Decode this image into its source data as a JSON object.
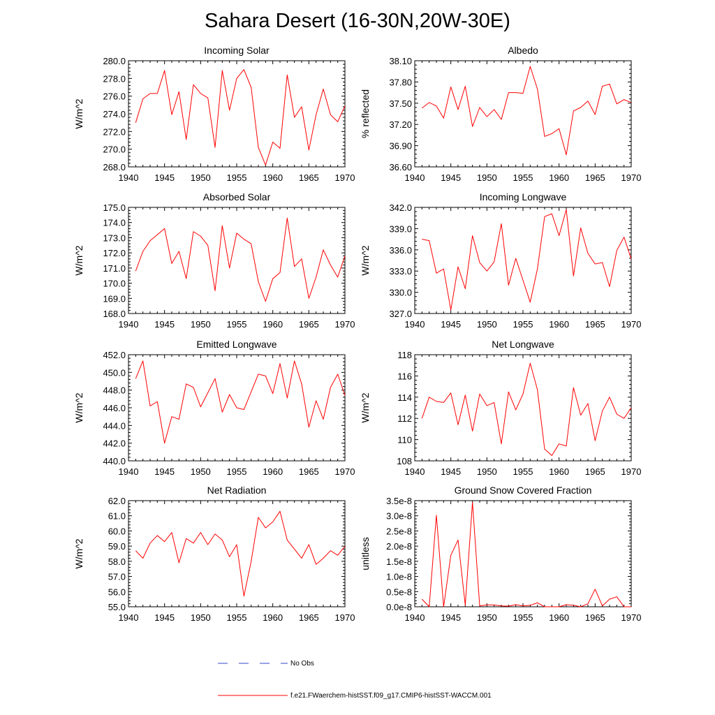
{
  "page": {
    "title": "Sahara Desert (16-30N,20W-30E)"
  },
  "legend": [
    {
      "label": "No Obs",
      "color": "#3344cc",
      "style": "dashed"
    },
    {
      "label": "f.e21.FWaerchem-histSST.f09_g17.CMIP6-histSST-WACCM.001",
      "color": "#ff0000",
      "style": "solid"
    }
  ],
  "chart_data": [
    {
      "type": "line",
      "title": "Incoming Solar",
      "ylabel": "W/m^2",
      "xlim": [
        1940,
        1970
      ],
      "ylim": [
        268,
        280
      ],
      "xticks": [
        1940,
        1945,
        1950,
        1955,
        1960,
        1965,
        1970
      ],
      "yticks": [
        268,
        270,
        272,
        274,
        276,
        278,
        280
      ],
      "ytick_labels": [
        "268.0",
        "270.0",
        "272.0",
        "274.0",
        "276.0",
        "278.0",
        "280.0"
      ],
      "x": [
        1941,
        1942,
        1943,
        1944,
        1945,
        1946,
        1947,
        1948,
        1949,
        1950,
        1951,
        1952,
        1953,
        1954,
        1955,
        1956,
        1957,
        1958,
        1959,
        1960,
        1961,
        1962,
        1963,
        1964,
        1965,
        1966,
        1967,
        1968,
        1969,
        1970
      ],
      "series": [
        {
          "name": "f.e21.FWaerchem-histSST.f09_g17.CMIP6-histSST-WACCM.001",
          "color": "#ff0000",
          "values": [
            273.0,
            275.7,
            276.3,
            276.3,
            278.9,
            273.9,
            276.5,
            271.1,
            277.3,
            276.3,
            275.8,
            270.2,
            278.9,
            274.4,
            278.0,
            279.0,
            277.0,
            270.2,
            268.2,
            270.8,
            270.1,
            278.4,
            273.6,
            274.8,
            269.9,
            273.9,
            276.8,
            273.9,
            273.1,
            274.9
          ]
        }
      ]
    },
    {
      "type": "line",
      "title": "Albedo",
      "ylabel": "% reflected",
      "xlim": [
        1940,
        1970
      ],
      "ylim": [
        36.6,
        38.1
      ],
      "xticks": [
        1940,
        1945,
        1950,
        1955,
        1960,
        1965,
        1970
      ],
      "yticks": [
        36.6,
        36.9,
        37.2,
        37.5,
        37.8,
        38.1
      ],
      "ytick_labels": [
        "36.60",
        "36.90",
        "37.20",
        "37.50",
        "37.80",
        "38.10"
      ],
      "x": [
        1941,
        1942,
        1943,
        1944,
        1945,
        1946,
        1947,
        1948,
        1949,
        1950,
        1951,
        1952,
        1953,
        1954,
        1955,
        1956,
        1957,
        1958,
        1959,
        1960,
        1961,
        1962,
        1963,
        1964,
        1965,
        1966,
        1967,
        1968,
        1969,
        1970
      ],
      "series": [
        {
          "name": "f.e21.FWaerchem-histSST.f09_g17.CMIP6-histSST-WACCM.001",
          "color": "#ff0000",
          "values": [
            37.43,
            37.51,
            37.46,
            37.29,
            37.73,
            37.41,
            37.74,
            37.17,
            37.44,
            37.31,
            37.41,
            37.27,
            37.65,
            37.65,
            37.64,
            38.02,
            37.7,
            37.03,
            37.07,
            37.14,
            36.77,
            37.39,
            37.44,
            37.53,
            37.34,
            37.74,
            37.77,
            37.49,
            37.55,
            37.51
          ]
        }
      ]
    },
    {
      "type": "line",
      "title": "Absorbed Solar",
      "ylabel": "W/m^2",
      "xlim": [
        1940,
        1970
      ],
      "ylim": [
        168,
        175
      ],
      "xticks": [
        1940,
        1945,
        1950,
        1955,
        1960,
        1965,
        1970
      ],
      "yticks": [
        168,
        169,
        170,
        171,
        172,
        173,
        174,
        175
      ],
      "ytick_labels": [
        "168.0",
        "169.0",
        "170.0",
        "171.0",
        "172.0",
        "173.0",
        "174.0",
        "175.0"
      ],
      "x": [
        1941,
        1942,
        1943,
        1944,
        1945,
        1946,
        1947,
        1948,
        1949,
        1950,
        1951,
        1952,
        1953,
        1954,
        1955,
        1956,
        1957,
        1958,
        1959,
        1960,
        1961,
        1962,
        1963,
        1964,
        1965,
        1966,
        1967,
        1968,
        1969,
        1970
      ],
      "series": [
        {
          "name": "f.e21.FWaerchem-histSST.f09_g17.CMIP6-histSST-WACCM.001",
          "color": "#ff0000",
          "values": [
            170.8,
            172.1,
            172.8,
            173.2,
            173.6,
            171.3,
            172.1,
            170.3,
            173.4,
            173.1,
            172.5,
            169.5,
            173.8,
            171.0,
            173.3,
            172.9,
            172.6,
            170.1,
            168.8,
            170.3,
            170.7,
            174.3,
            171.1,
            171.6,
            169.0,
            170.4,
            172.2,
            171.2,
            170.4,
            171.8
          ]
        }
      ]
    },
    {
      "type": "line",
      "title": "Incoming Longwave",
      "ylabel": "W/m^2",
      "xlim": [
        1940,
        1970
      ],
      "ylim": [
        327,
        342
      ],
      "xticks": [
        1940,
        1945,
        1950,
        1955,
        1960,
        1965,
        1970
      ],
      "yticks": [
        327,
        330,
        333,
        336,
        339,
        342
      ],
      "ytick_labels": [
        "327.0",
        "330.0",
        "333.0",
        "336.0",
        "339.0",
        "342.0"
      ],
      "x": [
        1941,
        1942,
        1943,
        1944,
        1945,
        1946,
        1947,
        1948,
        1949,
        1950,
        1951,
        1952,
        1953,
        1954,
        1955,
        1956,
        1957,
        1958,
        1959,
        1960,
        1961,
        1962,
        1963,
        1964,
        1965,
        1966,
        1967,
        1968,
        1969,
        1970
      ],
      "series": [
        {
          "name": "f.e21.FWaerchem-histSST.f09_g17.CMIP6-histSST-WACCM.001",
          "color": "#ff0000",
          "values": [
            337.5,
            337.3,
            332.7,
            333.3,
            327.5,
            333.6,
            330.5,
            338.0,
            334.2,
            333.0,
            334.3,
            339.7,
            331.0,
            334.8,
            331.7,
            328.6,
            333.3,
            340.7,
            341.1,
            338.0,
            341.7,
            332.3,
            339.1,
            335.5,
            334.0,
            334.2,
            330.8,
            335.9,
            337.8,
            334.7
          ]
        }
      ]
    },
    {
      "type": "line",
      "title": "Emitted Longwave",
      "ylabel": "W/m^2",
      "xlim": [
        1940,
        1970
      ],
      "ylim": [
        440,
        452
      ],
      "xticks": [
        1940,
        1945,
        1950,
        1955,
        1960,
        1965,
        1970
      ],
      "yticks": [
        440,
        442,
        444,
        446,
        448,
        450,
        452
      ],
      "ytick_labels": [
        "440.0",
        "442.0",
        "444.0",
        "446.0",
        "448.0",
        "450.0",
        "452.0"
      ],
      "x": [
        1941,
        1942,
        1943,
        1944,
        1945,
        1946,
        1947,
        1948,
        1949,
        1950,
        1951,
        1952,
        1953,
        1954,
        1955,
        1956,
        1957,
        1958,
        1959,
        1960,
        1961,
        1962,
        1963,
        1964,
        1965,
        1966,
        1967,
        1968,
        1969,
        1970
      ],
      "series": [
        {
          "name": "f.e21.FWaerchem-histSST.f09_g17.CMIP6-histSST-WACCM.001",
          "color": "#ff0000",
          "values": [
            449.3,
            451.3,
            446.2,
            446.7,
            442.0,
            445.0,
            444.7,
            448.7,
            448.3,
            446.1,
            447.7,
            449.3,
            445.5,
            447.5,
            446.0,
            445.8,
            447.8,
            449.8,
            449.6,
            447.6,
            451.0,
            447.1,
            451.3,
            448.7,
            443.8,
            446.8,
            444.7,
            448.3,
            449.8,
            447.4
          ]
        }
      ]
    },
    {
      "type": "line",
      "title": "Net Longwave",
      "ylabel": "W/m^2",
      "xlim": [
        1940,
        1970
      ],
      "ylim": [
        108,
        118
      ],
      "xticks": [
        1940,
        1945,
        1950,
        1955,
        1960,
        1965,
        1970
      ],
      "yticks": [
        108,
        110,
        112,
        114,
        116,
        118
      ],
      "ytick_labels": [
        "108",
        "110",
        "112",
        "114",
        "116",
        "118"
      ],
      "x": [
        1941,
        1942,
        1943,
        1944,
        1945,
        1946,
        1947,
        1948,
        1949,
        1950,
        1951,
        1952,
        1953,
        1954,
        1955,
        1956,
        1957,
        1958,
        1959,
        1960,
        1961,
        1962,
        1963,
        1964,
        1965,
        1966,
        1967,
        1968,
        1969,
        1970
      ],
      "series": [
        {
          "name": "f.e21.FWaerchem-histSST.f09_g17.CMIP6-histSST-WACCM.001",
          "color": "#ff0000",
          "values": [
            112.0,
            114.0,
            113.6,
            113.5,
            114.4,
            111.4,
            114.2,
            110.8,
            114.3,
            113.2,
            113.5,
            109.6,
            114.5,
            112.8,
            114.3,
            117.2,
            114.7,
            109.1,
            108.5,
            109.6,
            109.4,
            114.9,
            112.3,
            113.4,
            109.9,
            112.7,
            114.0,
            112.4,
            112.0,
            113.0
          ]
        }
      ]
    },
    {
      "type": "line",
      "title": "Net Radiation",
      "ylabel": "W/m^2",
      "xlim": [
        1940,
        1970
      ],
      "ylim": [
        55,
        62
      ],
      "xticks": [
        1940,
        1945,
        1950,
        1955,
        1960,
        1965,
        1970
      ],
      "yticks": [
        55,
        56,
        57,
        58,
        59,
        60,
        61,
        62
      ],
      "ytick_labels": [
        "55.0",
        "56.0",
        "57.0",
        "58.0",
        "59.0",
        "60.0",
        "61.0",
        "62.0"
      ],
      "x": [
        1941,
        1942,
        1943,
        1944,
        1945,
        1946,
        1947,
        1948,
        1949,
        1950,
        1951,
        1952,
        1953,
        1954,
        1955,
        1956,
        1957,
        1958,
        1959,
        1960,
        1961,
        1962,
        1963,
        1964,
        1965,
        1966,
        1967,
        1968,
        1969,
        1970
      ],
      "series": [
        {
          "name": "f.e21.FWaerchem-histSST.f09_g17.CMIP6-histSST-WACCM.001",
          "color": "#ff0000",
          "values": [
            58.7,
            58.2,
            59.2,
            59.7,
            59.3,
            59.9,
            57.9,
            59.5,
            59.2,
            59.9,
            59.1,
            59.8,
            59.4,
            58.3,
            59.1,
            55.7,
            58.0,
            60.9,
            60.2,
            60.6,
            61.3,
            59.4,
            58.8,
            58.2,
            59.1,
            57.8,
            58.2,
            58.7,
            58.4,
            59.0
          ]
        }
      ]
    },
    {
      "type": "line",
      "title": "Ground Snow Covered Fraction",
      "ylabel": "unitless",
      "xlim": [
        1940,
        1970
      ],
      "ylim": [
        0,
        3.5e-08
      ],
      "xticks": [
        1940,
        1945,
        1950,
        1955,
        1960,
        1965,
        1970
      ],
      "yticks": [
        0,
        5e-09,
        1e-08,
        1.5e-08,
        2e-08,
        2.5e-08,
        3e-08,
        3.5e-08
      ],
      "ytick_labels": [
        "0.0e-8",
        "0.5e-8",
        "1.0e-8",
        "1.5e-8",
        "2.0e-8",
        "2.5e-8",
        "3.0e-8",
        "3.5e-8"
      ],
      "x": [
        1941,
        1942,
        1943,
        1944,
        1945,
        1946,
        1947,
        1948,
        1949,
        1950,
        1951,
        1952,
        1953,
        1954,
        1955,
        1956,
        1957,
        1958,
        1959,
        1960,
        1961,
        1962,
        1963,
        1964,
        1965,
        1966,
        1967,
        1968,
        1969,
        1970
      ],
      "series": [
        {
          "name": "f.e21.FWaerchem-histSST.f09_g17.CMIP6-histSST-WACCM.001",
          "color": "#ff0000",
          "values": [
            2.5e-09,
            0.0,
            3.02e-08,
            0.0,
            1.7e-08,
            2.2e-08,
            5e-10,
            3.45e-08,
            3e-10,
            6e-10,
            6e-10,
            3e-10,
            2e-10,
            7e-10,
            3e-10,
            5e-10,
            1.3e-09,
            0.0,
            0.0,
            0.0,
            7e-10,
            5e-10,
            0.0,
            1e-09,
            5.8e-09,
            3e-10,
            2.5e-09,
            3.3e-09,
            0.0,
            0.0
          ]
        }
      ]
    }
  ]
}
